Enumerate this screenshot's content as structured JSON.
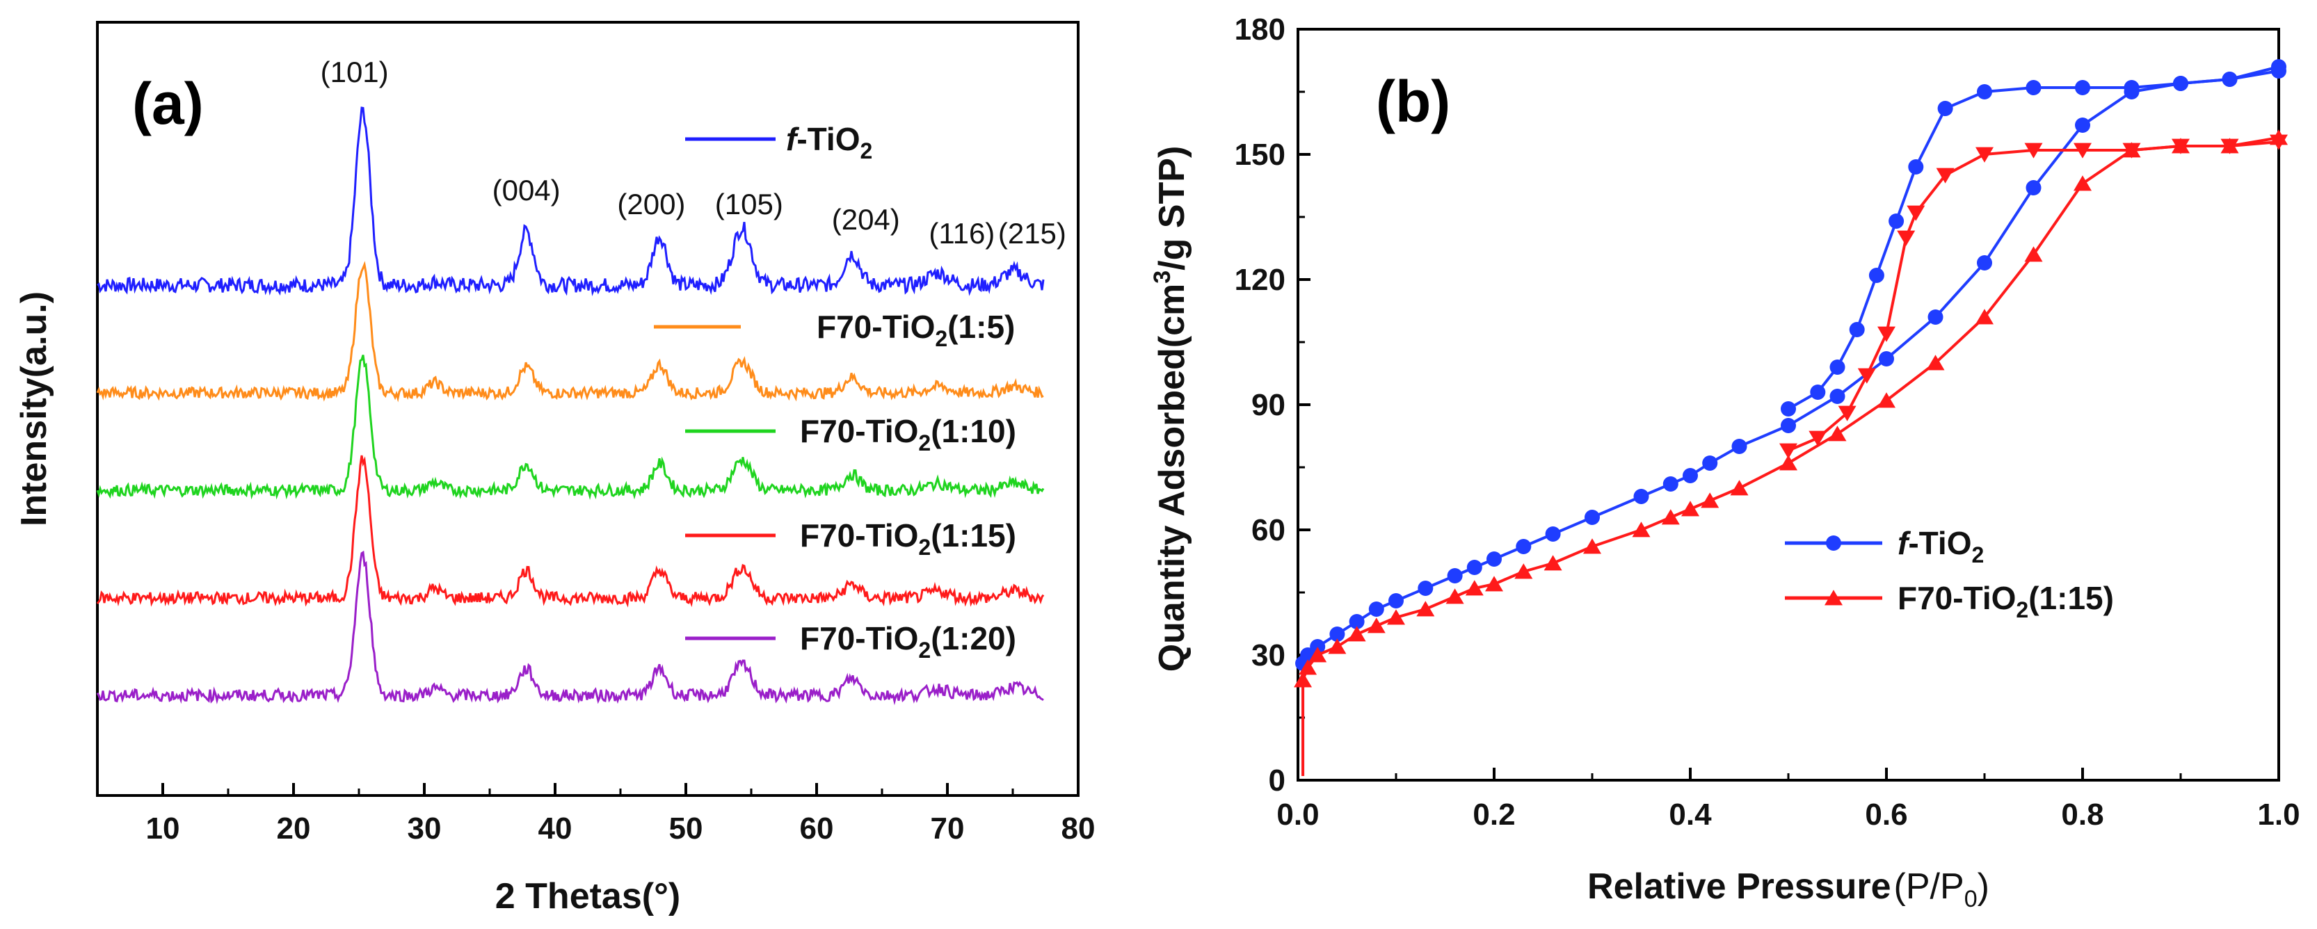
{
  "chart_data": [
    {
      "panel": "(a)",
      "type": "line",
      "xlabel": "2 Thetas(°)",
      "ylabel": "Intensity(a.u.)",
      "xlim": [
        5,
        80
      ],
      "x_ticks": [
        "10",
        "20",
        "30",
        "40",
        "50",
        "60",
        "70",
        "80"
      ],
      "peak_positions": [
        25.3,
        37.8,
        48.0,
        54.3,
        62.7,
        69.3,
        75.1
      ],
      "peak_labels": [
        "(101)",
        "(004)",
        "(200)",
        "(105)",
        "(204)",
        "(116)",
        "(215)"
      ],
      "series": [
        {
          "name": "f-TiO2",
          "label_prefix": "f",
          "label_main": "-TiO",
          "label_sub": "2",
          "label_suffix": "",
          "color": "#1f1fff",
          "peak_heights": [
            1.0,
            0.31,
            0.28,
            0.33,
            0.18,
            0.07,
            0.08
          ],
          "secondary_peak": 0.02
        },
        {
          "name": "F70-TiO2(1:5)",
          "label_prefix": "",
          "label_main": "F70-TiO",
          "label_sub": "2",
          "label_suffix": "(1:5)",
          "color": "#ff8c1a",
          "peak_heights": [
            1.0,
            0.2,
            0.22,
            0.24,
            0.12,
            0.05,
            0.05
          ],
          "secondary_peak": 0.08
        },
        {
          "name": "F70-TiO2(1:10)",
          "label_prefix": "",
          "label_main": "F70-TiO",
          "label_sub": "2",
          "label_suffix": "(1:10)",
          "color": "#1fd41f",
          "peak_heights": [
            1.0,
            0.2,
            0.2,
            0.23,
            0.12,
            0.05,
            0.05
          ],
          "secondary_peak": 0.06
        },
        {
          "name": "F70-TiO2(1:15)",
          "label_prefix": "",
          "label_main": "F70-TiO",
          "label_sub": "2",
          "label_suffix": "(1:15)",
          "color": "#ff1a1a",
          "peak_heights": [
            1.0,
            0.2,
            0.2,
            0.22,
            0.1,
            0.05,
            0.05
          ],
          "secondary_peak": 0.07
        },
        {
          "name": "F70-TiO2(1:20)",
          "label_prefix": "",
          "label_main": "F70-TiO",
          "label_sub": "2",
          "label_suffix": "(1:20)",
          "color": "#9a1fc9",
          "peak_heights": [
            1.0,
            0.19,
            0.19,
            0.22,
            0.12,
            0.05,
            0.06
          ],
          "secondary_peak": 0.05
        }
      ]
    },
    {
      "panel": "(b)",
      "type": "line",
      "xlabel_main": "Relative Pressure",
      "xlabel_paren": "(P/P",
      "xlabel_sub": "0",
      "xlabel_close": ")",
      "ylabel_main": "Quantity Adsorbed(cm",
      "ylabel_sup": "3",
      "ylabel_end": "/g STP)",
      "xlim": [
        0.0,
        1.0
      ],
      "ylim": [
        0,
        180
      ],
      "x_ticks": [
        "0.0",
        "0.2",
        "0.4",
        "0.6",
        "0.8",
        "1.0"
      ],
      "y_ticks": [
        "0",
        "30",
        "60",
        "90",
        "120",
        "150",
        "180"
      ],
      "legend_location": "lower-right",
      "series": [
        {
          "name": "f-TiO2",
          "label_prefix": "f",
          "label_main": "-TiO",
          "label_sub": "2",
          "label_suffix": "",
          "color": "#1f3dff",
          "marker": "circle",
          "adsorption": {
            "x": [
              0.005,
              0.01,
              0.02,
              0.04,
              0.06,
              0.08,
              0.1,
              0.13,
              0.16,
              0.18,
              0.2,
              0.23,
              0.26,
              0.3,
              0.35,
              0.38,
              0.4,
              0.42,
              0.45,
              0.5,
              0.55,
              0.6,
              0.65,
              0.7,
              0.75,
              0.8,
              0.85,
              0.9,
              0.95,
              1.0
            ],
            "y": [
              28,
              30,
              32,
              35,
              38,
              41,
              43,
              46,
              49,
              51,
              53,
              56,
              59,
              63,
              68,
              71,
              73,
              76,
              80,
              85,
              92,
              101,
              111,
              124,
              142,
              157,
              165,
              167,
              168,
              171
            ]
          },
          "desorption": {
            "x": [
              1.0,
              0.95,
              0.9,
              0.85,
              0.8,
              0.75,
              0.7,
              0.66,
              0.63,
              0.61,
              0.59,
              0.57,
              0.55,
              0.53,
              0.5
            ],
            "y": [
              170,
              168,
              167,
              166,
              166,
              166,
              165,
              161,
              147,
              134,
              121,
              108,
              99,
              93,
              89
            ]
          }
        },
        {
          "name": "F70-TiO2(1:15)",
          "label_prefix": "",
          "label_main": "F70-TiO",
          "label_sub": "2",
          "label_suffix": "(1:15)",
          "color": "#ff1a1a",
          "marker": "triangle",
          "adsorption": {
            "x": [
              0.005,
              0.01,
              0.02,
              0.04,
              0.06,
              0.08,
              0.1,
              0.13,
              0.16,
              0.18,
              0.2,
              0.23,
              0.26,
              0.3,
              0.35,
              0.38,
              0.4,
              0.42,
              0.45,
              0.5,
              0.55,
              0.6,
              0.65,
              0.7,
              0.75,
              0.8,
              0.85,
              0.9,
              0.95,
              1.0
            ],
            "y": [
              24,
              27,
              30,
              32,
              35,
              37,
              39,
              41,
              44,
              46,
              47,
              50,
              52,
              56,
              60,
              63,
              65,
              67,
              70,
              76,
              83,
              91,
              100,
              111,
              126,
              143,
              151,
              152,
              152,
              154
            ]
          },
          "desorption": {
            "x": [
              1.0,
              0.95,
              0.9,
              0.85,
              0.8,
              0.75,
              0.7,
              0.66,
              0.63,
              0.62,
              0.6,
              0.58,
              0.56,
              0.53,
              0.5
            ],
            "y": [
              153,
              152,
              152,
              151,
              151,
              151,
              150,
              145,
              136,
              130,
              107,
              97,
              88,
              82,
              79
            ]
          }
        }
      ]
    }
  ]
}
